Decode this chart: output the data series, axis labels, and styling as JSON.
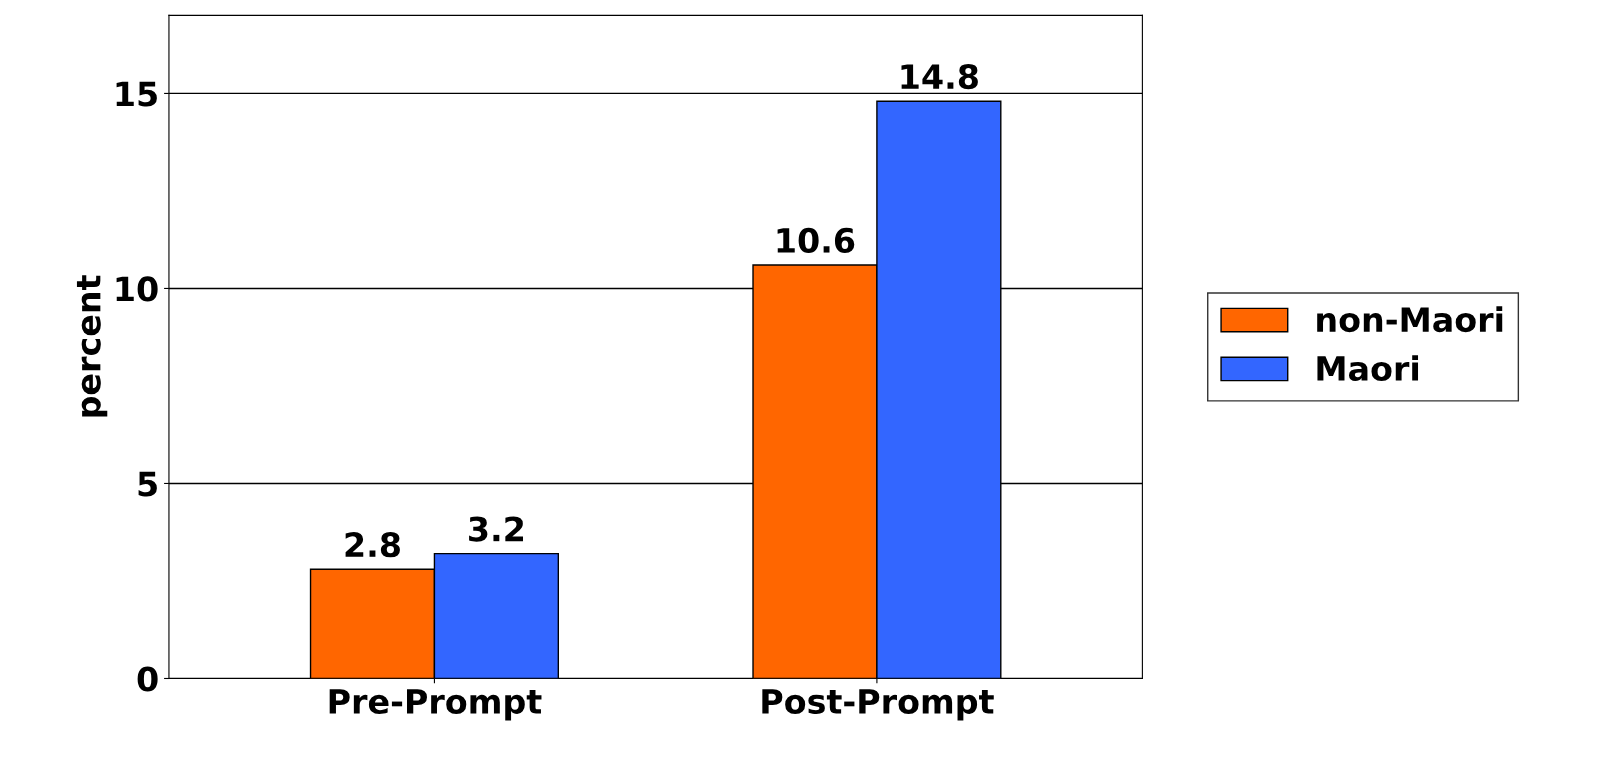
{
  "chart_data": {
    "type": "bar",
    "ylabel": "percent",
    "categories": [
      "Pre-Prompt",
      "Post-Prompt"
    ],
    "series": [
      {
        "name": "non-Maori",
        "color": "#ff6600",
        "values": [
          2.8,
          10.6
        ]
      },
      {
        "name": "Maori",
        "color": "#3366ff",
        "values": [
          3.2,
          14.8
        ]
      }
    ],
    "ylim": [
      0,
      17
    ],
    "yticks": [
      0,
      5,
      10,
      15
    ],
    "grid": "y",
    "legend": "right",
    "data_labels": true
  }
}
